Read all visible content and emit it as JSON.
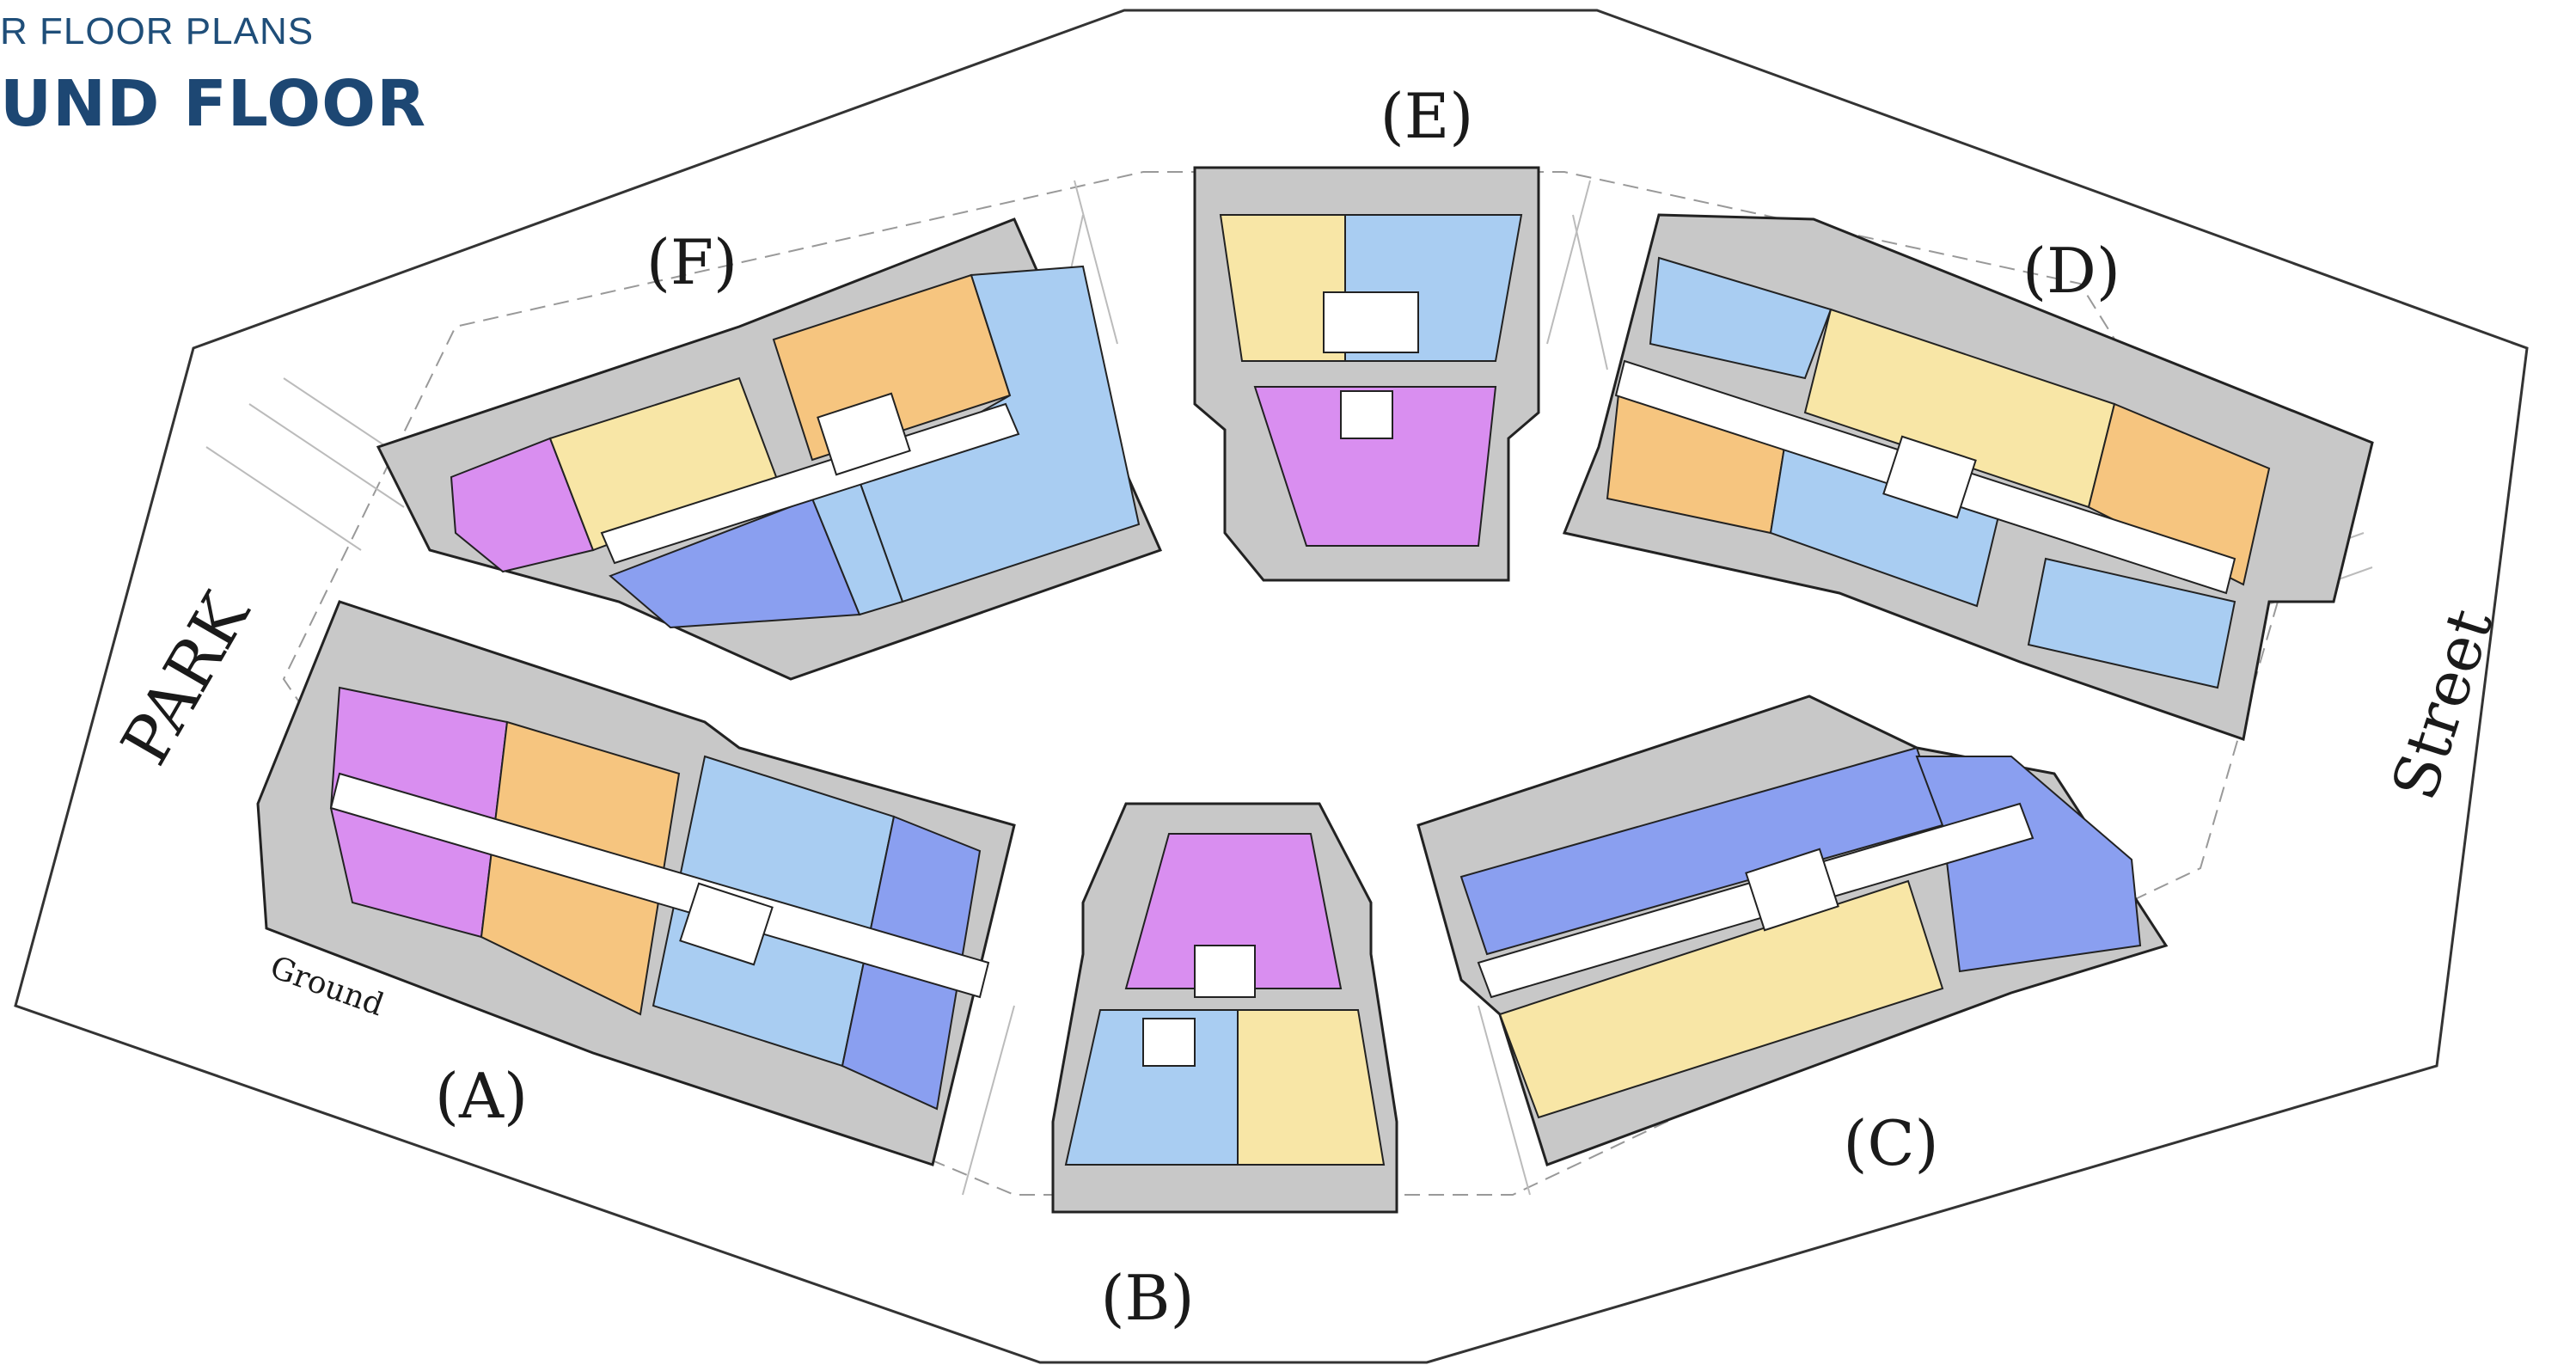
{
  "header": {
    "subtitle": "R FLOOR PLANS",
    "title": "UND FLOOR"
  },
  "plan": {
    "buildings": [
      {
        "label": "(A)"
      },
      {
        "label": "(B)"
      },
      {
        "label": "(C)"
      },
      {
        "label": "(D)"
      },
      {
        "label": "(E)"
      },
      {
        "label": "(F)"
      }
    ],
    "site_labels": {
      "park": "PARK",
      "street": "Street",
      "ground": "Ground"
    }
  },
  "colors": {
    "purple": "#d98ef0",
    "orange": "#f6c57f",
    "yellow": "#f8e6a6",
    "light_blue": "#a9cdf2",
    "blue": "#8a9ff0",
    "gray": "#c8c8c8",
    "corridor": "#ffffff",
    "title": "#1d4773"
  }
}
